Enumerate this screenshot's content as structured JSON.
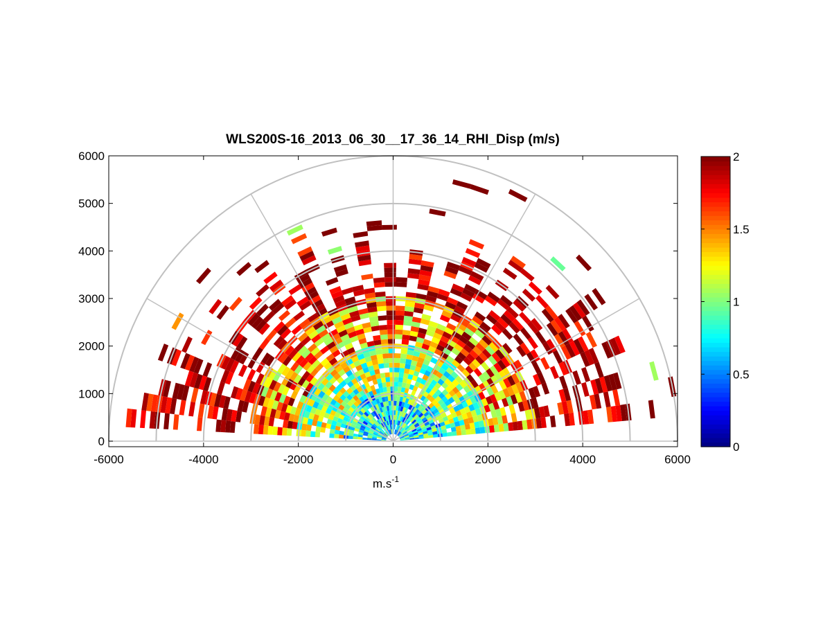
{
  "chart_data": {
    "type": "heatmap",
    "subtype": "polar-rhi-sector",
    "title": "WLS200S-16_2013_06_30__17_36_14_RHI_Disp (m/s)",
    "xlabel": "m.s",
    "xlabel_superscript": "-1",
    "ylabel": "",
    "xlim": [
      -6000,
      6000
    ],
    "ylim": [
      0,
      6000
    ],
    "x_ticks": [
      -6000,
      -4000,
      -2000,
      0,
      2000,
      4000,
      6000
    ],
    "x_tick_labels": [
      "-6000",
      "-4000",
      "-2000",
      "0",
      "2000",
      "4000",
      "6000"
    ],
    "y_ticks": [
      0,
      1000,
      2000,
      3000,
      4000,
      5000,
      6000
    ],
    "y_tick_labels": [
      "0",
      "1000",
      "2000",
      "3000",
      "4000",
      "5000",
      "6000"
    ],
    "polar_grid": {
      "range_rings": [
        1000,
        2000,
        3000,
        4000,
        5000,
        6000
      ],
      "spokes_deg": [
        0,
        30,
        60,
        90,
        120,
        150,
        180
      ]
    },
    "grid": true,
    "colorbar": {
      "colormap": "jet",
      "range": [
        0,
        2
      ],
      "ticks": [
        0,
        0.5,
        1,
        1.5,
        2
      ],
      "tick_labels": [
        "0",
        "0.5",
        "1",
        "1.5",
        "2"
      ],
      "placement": "right"
    },
    "scan": {
      "elevation_deg_range": [
        5,
        175
      ],
      "max_range_m": 6000,
      "description_values": "velocity dispersion, m/s",
      "summary_by_range_m": [
        {
          "range": [
            0,
            1000
          ],
          "typical_value": 0.7
        },
        {
          "range": [
            1000,
            2000
          ],
          "typical_value": 1.0
        },
        {
          "range": [
            2000,
            3000
          ],
          "typical_value": 1.5
        },
        {
          "range": [
            3000,
            4500
          ],
          "typical_value": 2.0
        },
        {
          "range": [
            4500,
            6000
          ],
          "typical_value": 2.0
        }
      ]
    }
  }
}
